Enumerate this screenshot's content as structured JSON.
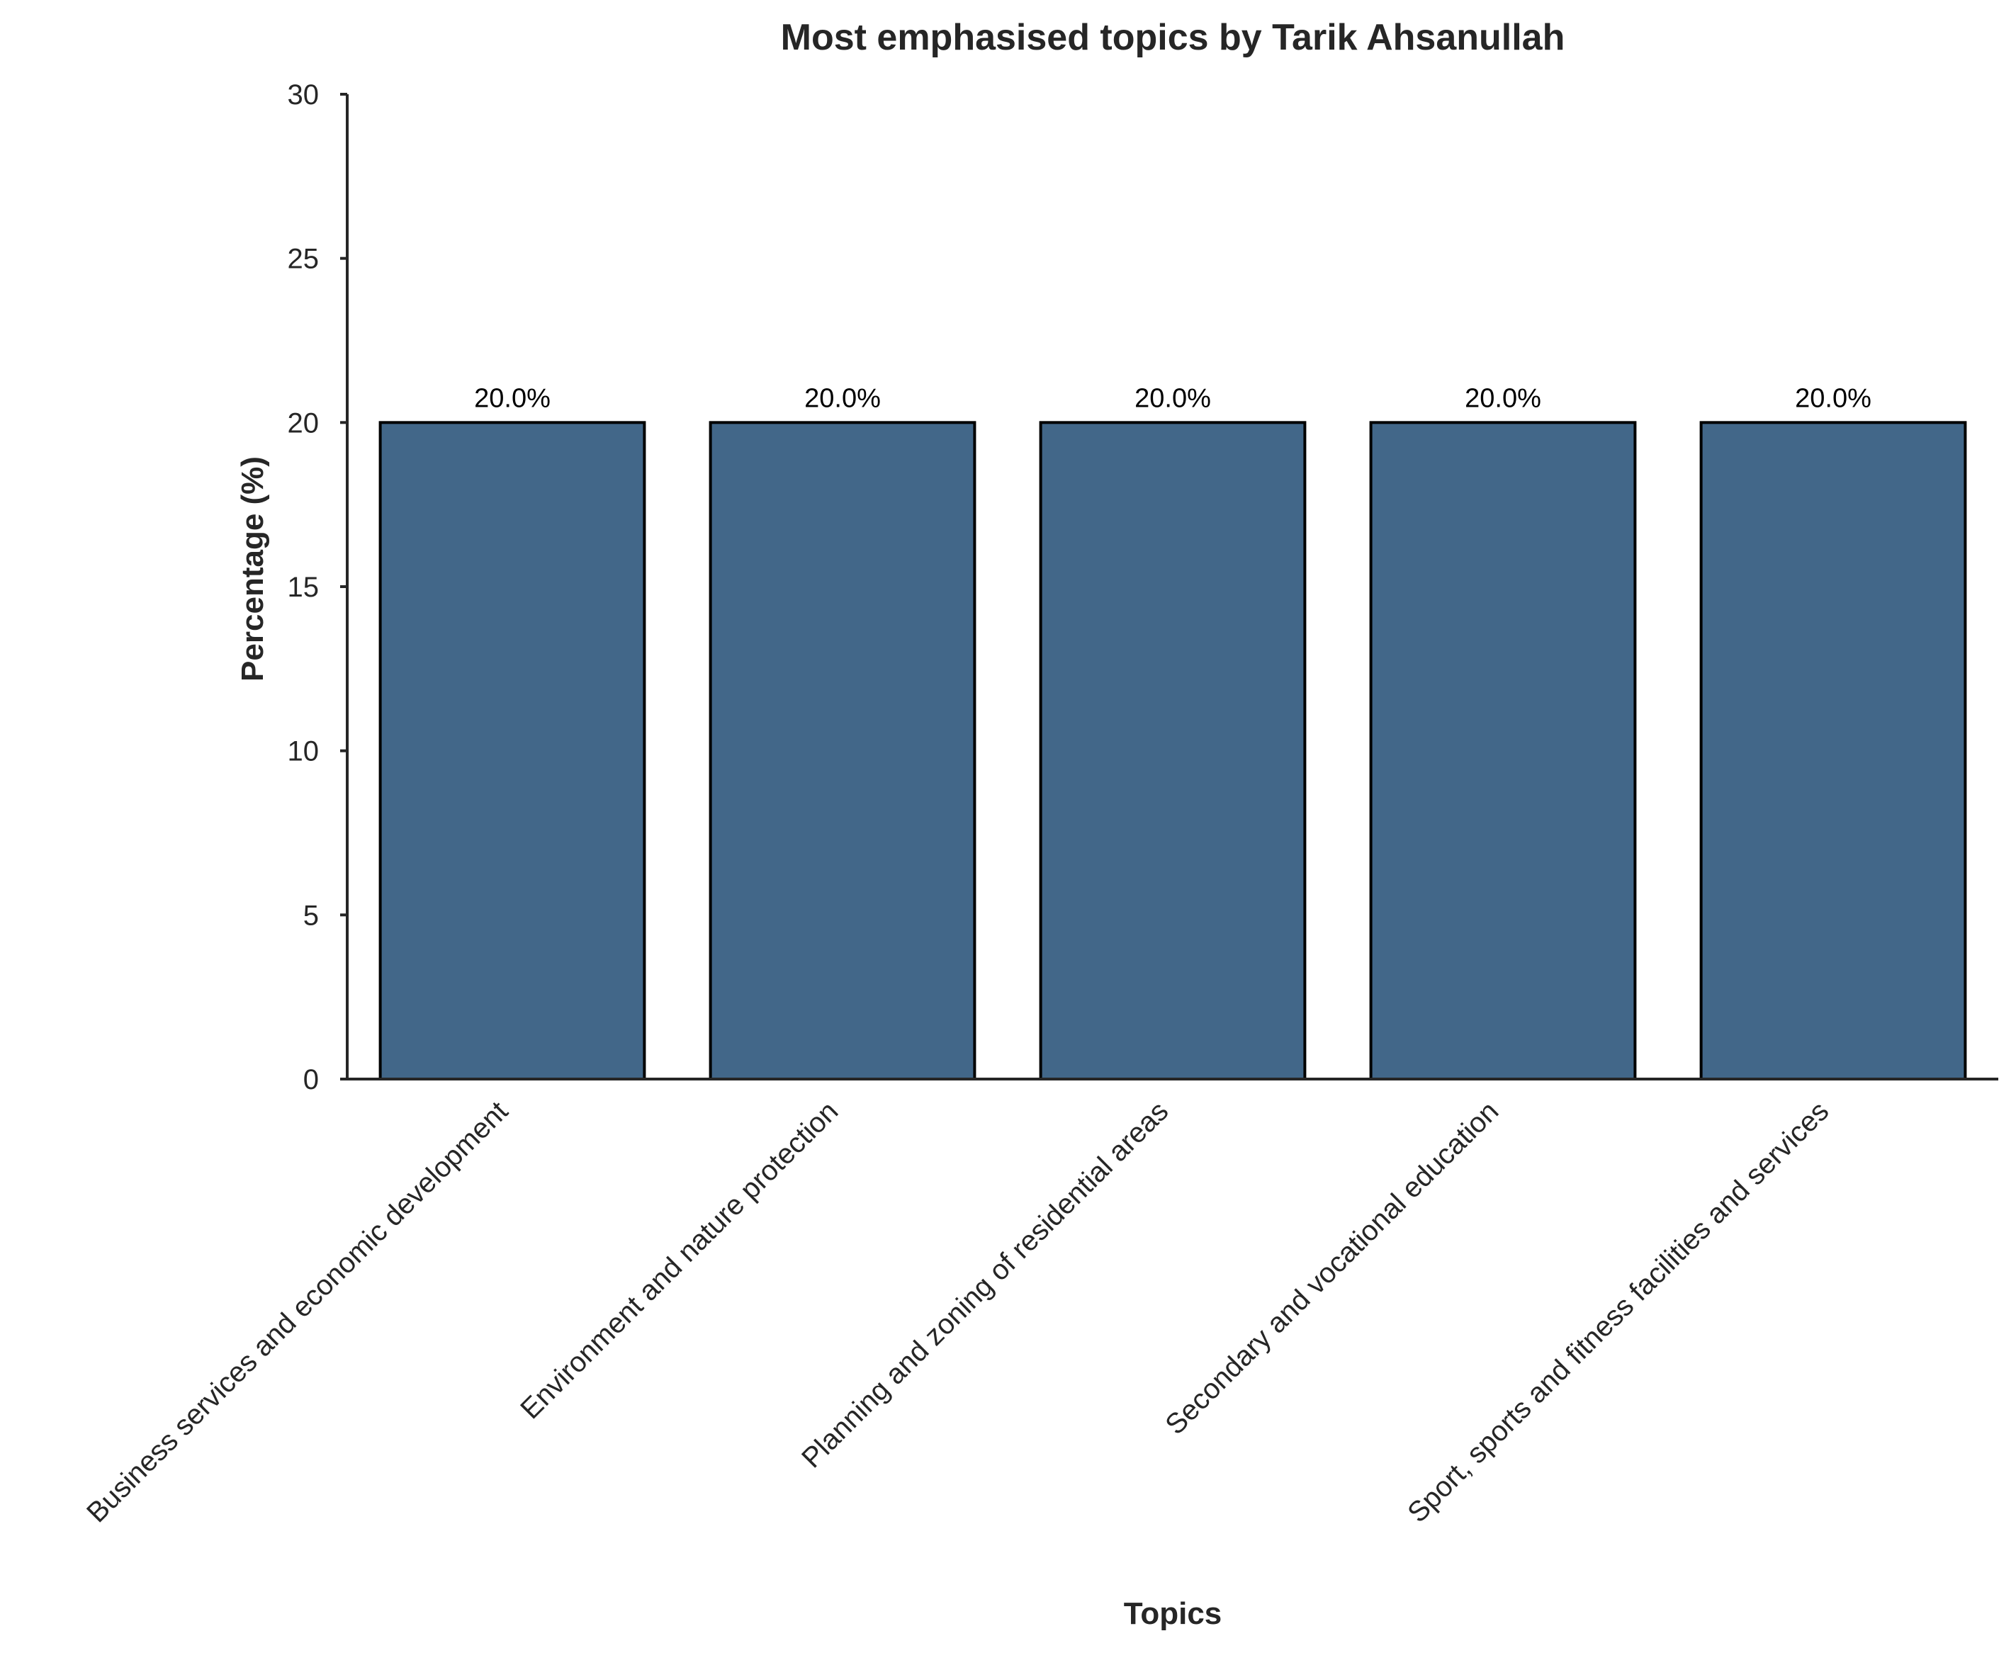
{
  "chart_data": {
    "type": "bar",
    "title": "Most emphasised topics by Tarik Ahsanullah",
    "xlabel": "Topics",
    "ylabel": "Percentage (%)",
    "categories": [
      "Business services and economic development",
      "Environment and nature protection",
      "Planning and zoning of residential areas",
      "Secondary and vocational education",
      "Sport, sports and fitness facilities and services"
    ],
    "values": [
      20.0,
      20.0,
      20.0,
      20.0,
      20.0
    ],
    "data_labels": [
      "20.0%",
      "20.0%",
      "20.0%",
      "20.0%",
      "20.0%"
    ],
    "ylim": [
      0,
      30
    ],
    "yticks": [
      0,
      5,
      10,
      15,
      20,
      25,
      30
    ],
    "ytick_labels": [
      "0",
      "5",
      "10",
      "15",
      "20",
      "25",
      "30"
    ],
    "grid": false,
    "legend": "none",
    "colors": {
      "bar_fill": "#426789",
      "bar_edge": "#000000",
      "axis": "#262626",
      "text": "#262626"
    }
  }
}
